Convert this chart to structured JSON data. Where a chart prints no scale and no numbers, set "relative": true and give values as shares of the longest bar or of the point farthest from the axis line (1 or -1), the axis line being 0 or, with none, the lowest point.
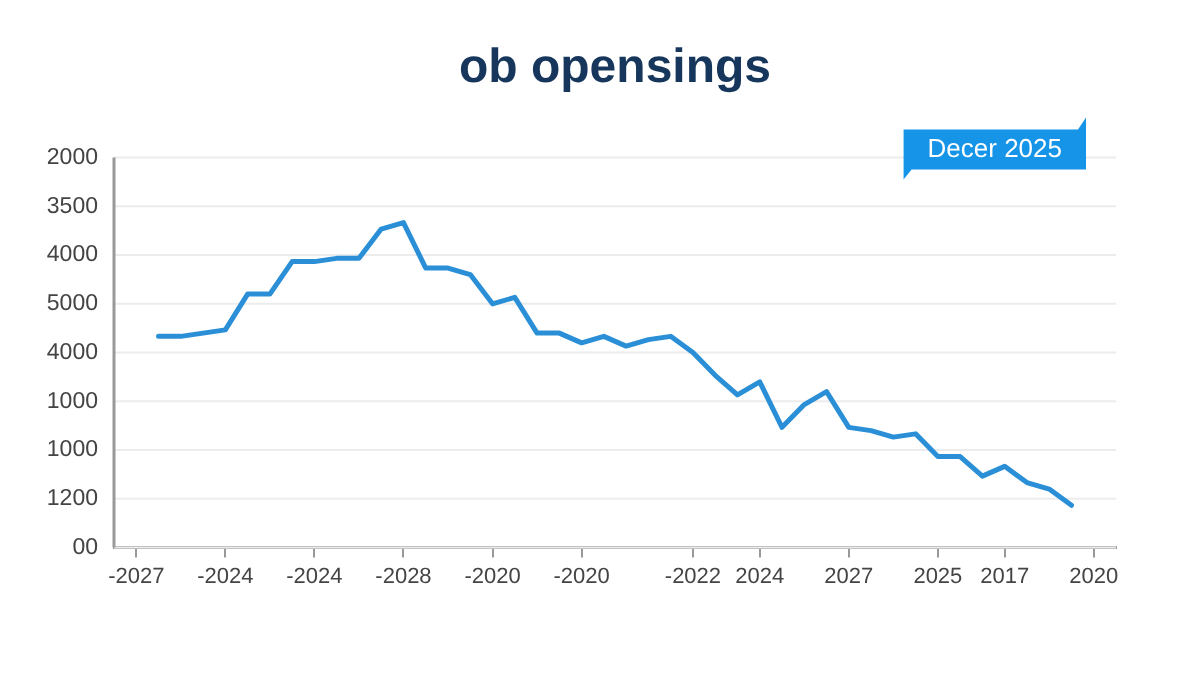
{
  "chart_data": {
    "type": "line",
    "title": "ob opensings",
    "relative": true,
    "annotations": [
      "Decer 2025",
      "2000",
      "3500",
      "4000",
      "5000",
      "4000",
      "1000",
      "1000",
      "1200",
      "00"
    ],
    "categories": [
      null,
      "-2027",
      null,
      null,
      null,
      "-2024",
      null,
      null,
      null,
      "-2024",
      null,
      null,
      null,
      "-2028",
      null,
      null,
      null,
      "-2020",
      null,
      null,
      null,
      "-2020",
      null,
      null,
      null,
      null,
      "-2022",
      null,
      null,
      "2024",
      null,
      null,
      null,
      "2027",
      null,
      null,
      null,
      "2025",
      null,
      null,
      "2017",
      null,
      null,
      null,
      "2020",
      null
    ],
    "grid": "y",
    "legend": false,
    "marker": "none",
    "line_style": "solid",
    "series": [
      {
        "color": "#2a8fd6",
        "values": [
          null,
          null,
          0.65,
          0.65,
          0.66,
          0.67,
          0.78,
          0.78,
          0.88,
          0.88,
          0.89,
          0.89,
          0.98,
          1,
          0.86,
          0.86,
          0.84,
          0.75,
          0.77,
          0.66,
          0.66,
          0.63,
          0.65,
          0.62,
          0.64,
          0.65,
          0.6,
          0.53,
          0.47,
          0.51,
          0.37,
          0.44,
          0.48,
          0.37,
          0.36,
          0.34,
          0.35,
          0.28,
          0.28,
          0.22,
          0.25,
          0.2,
          0.18,
          0.13,
          null,
          null
        ]
      }
    ]
  }
}
